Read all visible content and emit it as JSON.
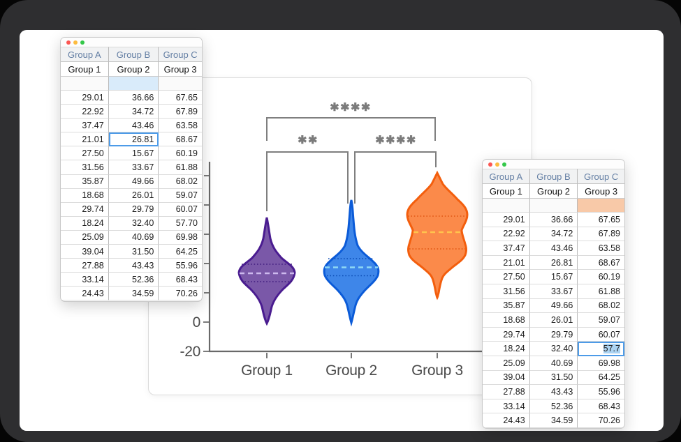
{
  "window_controls": {
    "close": "#FC5753",
    "minimize": "#FDBC40",
    "zoom": "#34C84A"
  },
  "left_table": {
    "headers": [
      "Group A",
      "Group B",
      "Group C"
    ],
    "subheaders": [
      "Group 1",
      "Group 2",
      "Group 3"
    ],
    "empty_highlight": {
      "col": 1,
      "color": "#D9EBFA"
    },
    "selected": {
      "row": 3,
      "col": 1,
      "value": "26.81",
      "style": "focused"
    },
    "rows": [
      [
        "29.01",
        "36.66",
        "67.65"
      ],
      [
        "22.92",
        "34.72",
        "67.89"
      ],
      [
        "37.47",
        "43.46",
        "63.58"
      ],
      [
        "21.01",
        "26.81",
        "68.67"
      ],
      [
        "27.50",
        "15.67",
        "60.19"
      ],
      [
        "31.56",
        "33.67",
        "61.88"
      ],
      [
        "35.87",
        "49.66",
        "68.02"
      ],
      [
        "18.68",
        "26.01",
        "59.07"
      ],
      [
        "29.74",
        "29.79",
        "60.07"
      ],
      [
        "18.24",
        "32.40",
        "57.70"
      ],
      [
        "25.09",
        "40.69",
        "69.98"
      ],
      [
        "39.04",
        "31.50",
        "64.25"
      ],
      [
        "27.88",
        "43.43",
        "55.96"
      ],
      [
        "33.14",
        "52.36",
        "68.43"
      ],
      [
        "24.43",
        "34.59",
        "70.26"
      ]
    ]
  },
  "right_table": {
    "headers": [
      "Group A",
      "Group B",
      "Group C"
    ],
    "subheaders": [
      "Group 1",
      "Group 2",
      "Group 3"
    ],
    "empty_highlight": {
      "col": 2,
      "color": "#F8C9A8"
    },
    "selected": {
      "row": 9,
      "col": 2,
      "value": "57.7",
      "style": "editing"
    },
    "rows": [
      [
        "29.01",
        "36.66",
        "67.65"
      ],
      [
        "22.92",
        "34.72",
        "67.89"
      ],
      [
        "37.47",
        "43.46",
        "63.58"
      ],
      [
        "21.01",
        "26.81",
        "68.67"
      ],
      [
        "27.50",
        "15.67",
        "60.19"
      ],
      [
        "31.56",
        "33.67",
        "61.88"
      ],
      [
        "35.87",
        "49.66",
        "68.02"
      ],
      [
        "18.68",
        "26.01",
        "59.07"
      ],
      [
        "29.74",
        "29.79",
        "60.07"
      ],
      [
        "18.24",
        "32.40",
        "57.7"
      ],
      [
        "25.09",
        "40.69",
        "69.98"
      ],
      [
        "39.04",
        "31.50",
        "64.25"
      ],
      [
        "27.88",
        "43.43",
        "55.96"
      ],
      [
        "33.14",
        "52.36",
        "68.43"
      ],
      [
        "24.43",
        "34.59",
        "70.26"
      ]
    ]
  },
  "chart_data": {
    "type": "violin",
    "categories": [
      "Group 1",
      "Group 2",
      "Group 3"
    ],
    "y_tick_labels": [
      "0",
      "-20"
    ],
    "y_axis_visible_range": [
      -20,
      100
    ],
    "grid": false,
    "series": [
      {
        "name": "Group 1",
        "fill": "#7A58A8",
        "stroke": "#4A1C90",
        "median_color": "#CDB9EE",
        "quartile_color": "#3F1B7E",
        "values": [
          29.01,
          22.92,
          37.47,
          21.01,
          27.5,
          31.56,
          35.87,
          18.68,
          29.74,
          18.24,
          25.09,
          39.04,
          27.88,
          33.14,
          24.43
        ]
      },
      {
        "name": "Group 2",
        "fill": "#3E86E9",
        "stroke": "#0B5BD8",
        "median_color": "#8FD9F5",
        "quartile_color": "#0A4CB5",
        "values": [
          36.66,
          34.72,
          43.46,
          26.81,
          15.67,
          33.67,
          49.66,
          26.01,
          29.79,
          32.4,
          40.69,
          31.5,
          43.43,
          52.36,
          34.59
        ]
      },
      {
        "name": "Group 3",
        "fill": "#FB8A4A",
        "stroke": "#F35E0D",
        "median_color": "#FFC34D",
        "quartile_color": "#E05413",
        "values": [
          67.65,
          67.89,
          63.58,
          68.67,
          60.19,
          61.88,
          68.02,
          59.07,
          60.07,
          57.7,
          69.98,
          64.25,
          55.96,
          68.43,
          70.26
        ]
      }
    ],
    "significance": [
      {
        "pair": [
          "Group 1",
          "Group 3"
        ],
        "label": "****"
      },
      {
        "pair": [
          "Group 1",
          "Group 2"
        ],
        "label": "**"
      },
      {
        "pair": [
          "Group 2",
          "Group 3"
        ],
        "label": "****"
      }
    ],
    "axis_color": "#696969",
    "bracket_color": "#7F7F7F",
    "label_color": "#4A4A4A"
  }
}
